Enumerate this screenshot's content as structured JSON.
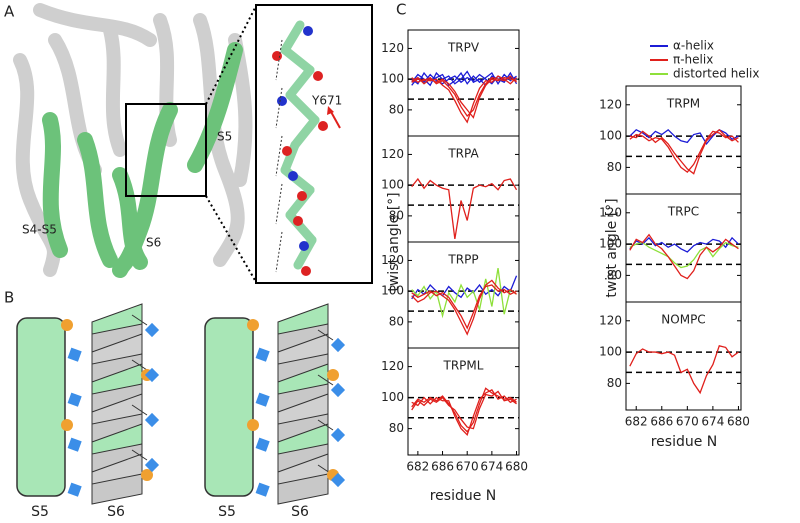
{
  "panels": {
    "a": {
      "letter": "A",
      "labels": [
        "S4-S5",
        "S6",
        "S5",
        "Y671"
      ]
    },
    "b": {
      "letter": "B",
      "labels": [
        "S5",
        "S6",
        "S5",
        "S6"
      ]
    },
    "c": {
      "letter": "C"
    }
  },
  "legend": [
    {
      "name": "α-helix",
      "color": "#1c1cd6"
    },
    {
      "name": "π-helix",
      "color": "#e0201c"
    },
    {
      "name": "distorted helix",
      "color": "#8ee03a"
    }
  ],
  "axis_columns": [
    {
      "ylabel": "twist angle [°]",
      "xlabel": "residue N"
    },
    {
      "ylabel": "twist angle [°]",
      "xlabel": "residue N"
    }
  ],
  "chart_data": [
    {
      "type": "line",
      "title": "TRPV",
      "x": [
        1,
        2,
        3,
        4,
        5,
        6,
        7,
        8,
        9,
        10,
        11,
        12,
        13,
        14,
        15,
        16,
        17,
        18
      ],
      "xlim": [
        0.4,
        18.4
      ],
      "ylim": [
        63,
        132
      ],
      "yticks": [
        80,
        100,
        120
      ],
      "reference_lines": [
        100,
        87
      ],
      "series": [
        {
          "color": "#1c1cd6",
          "values": [
            96,
            101,
            98,
            103,
            99,
            97,
            100,
            102,
            98,
            101,
            99,
            103,
            100,
            97,
            102,
            99,
            101,
            100
          ]
        },
        {
          "color": "#1c1cd6",
          "values": [
            100,
            97,
            104,
            99,
            101,
            103,
            96,
            99,
            104,
            97,
            102,
            98,
            101,
            104,
            97,
            103,
            99,
            102
          ]
        },
        {
          "color": "#1c1cd6",
          "values": [
            98,
            103,
            100,
            96,
            104,
            100,
            102,
            97,
            100,
            105,
            98,
            100,
            96,
            102,
            100,
            98,
            104,
            97
          ]
        },
        {
          "color": "#e0201c",
          "values": [
            98,
            100,
            99,
            101,
            97,
            99,
            95,
            90,
            82,
            76,
            80,
            90,
            97,
            101,
            100,
            99,
            102,
            98
          ]
        },
        {
          "color": "#e0201c",
          "values": [
            101,
            98,
            100,
            99,
            100,
            96,
            93,
            86,
            78,
            72,
            84,
            94,
            99,
            98,
            102,
            100,
            97,
            101
          ]
        },
        {
          "color": "#e0201c",
          "values": [
            99,
            101,
            97,
            100,
            98,
            100,
            97,
            92,
            85,
            80,
            75,
            88,
            96,
            100,
            99,
            101,
            100,
            99
          ]
        }
      ]
    },
    {
      "type": "line",
      "title": "TRPA",
      "x": [
        1,
        2,
        3,
        4,
        5,
        6,
        7,
        8,
        9,
        10,
        11,
        12,
        13,
        14,
        15,
        16,
        17,
        18
      ],
      "xlim": [
        0.4,
        18.4
      ],
      "ylim": [
        63,
        132
      ],
      "yticks": [
        80,
        100,
        120
      ],
      "reference_lines": [
        100,
        87
      ],
      "series": [
        {
          "color": "#e0201c",
          "values": [
            99,
            104,
            98,
            103,
            100,
            98,
            97,
            65,
            90,
            77,
            98,
            100,
            99,
            101,
            97,
            103,
            104,
            97
          ]
        }
      ]
    },
    {
      "type": "line",
      "title": "TRPP",
      "x": [
        1,
        2,
        3,
        4,
        5,
        6,
        7,
        8,
        9,
        10,
        11,
        12,
        13,
        14,
        15,
        16,
        17,
        18
      ],
      "xlim": [
        0.4,
        18.4
      ],
      "ylim": [
        63,
        132
      ],
      "yticks": [
        80,
        100,
        120
      ],
      "reference_lines": [
        100,
        87
      ],
      "series": [
        {
          "color": "#1c1cd6",
          "values": [
            95,
            101,
            98,
            104,
            100,
            97,
            103,
            99,
            96,
            102,
            99,
            104,
            98,
            101,
            97,
            103,
            100,
            110
          ]
        },
        {
          "color": "#8ee03a",
          "values": [
            101,
            97,
            103,
            95,
            100,
            84,
            99,
            93,
            104,
            96,
            100,
            88,
            108,
            90,
            115,
            85,
            101,
            98
          ]
        },
        {
          "color": "#e0201c",
          "values": [
            97,
            93,
            95,
            99,
            100,
            97,
            94,
            88,
            80,
            72,
            82,
            95,
            104,
            107,
            102,
            99,
            101,
            98
          ]
        },
        {
          "color": "#e0201c",
          "values": [
            99,
            96,
            98,
            100,
            97,
            99,
            96,
            90,
            84,
            76,
            86,
            97,
            103,
            104,
            100,
            101,
            98,
            100
          ]
        }
      ]
    },
    {
      "type": "line",
      "title": "TRPML",
      "x": [
        1,
        2,
        3,
        4,
        5,
        6,
        7,
        8,
        9,
        10,
        11,
        12,
        13,
        14,
        15,
        16,
        17,
        18
      ],
      "xlim": [
        0.4,
        18.4
      ],
      "ylim": [
        63,
        132
      ],
      "yticks": [
        80,
        100,
        120
      ],
      "reference_lines": [
        100,
        87
      ],
      "xticks": [
        {
          "value": 2,
          "label": "682"
        },
        {
          "value": 6,
          "label": "686"
        },
        {
          "value": 10,
          "label": "670"
        },
        {
          "value": 14,
          "label": "674"
        },
        {
          "value": 18,
          "label": "680"
        }
      ],
      "series": [
        {
          "color": "#e0201c",
          "values": [
            94,
            99,
            97,
            100,
            98,
            101,
            96,
            90,
            82,
            78,
            84,
            96,
            106,
            103,
            101,
            99,
            100,
            97
          ]
        },
        {
          "color": "#e0201c",
          "values": [
            97,
            95,
            100,
            96,
            100,
            98,
            98,
            88,
            80,
            76,
            88,
            99,
            103,
            105,
            99,
            101,
            97,
            99
          ]
        },
        {
          "color": "#e0201c",
          "values": [
            92,
            98,
            95,
            99,
            97,
            100,
            95,
            92,
            86,
            81,
            80,
            93,
            102,
            101,
            104,
            98,
            99,
            96
          ]
        }
      ]
    },
    {
      "type": "line",
      "title": "TRPM",
      "x": [
        1,
        2,
        3,
        4,
        5,
        6,
        7,
        8,
        9,
        10,
        11,
        12,
        13,
        14,
        15,
        16,
        17,
        18
      ],
      "xlim": [
        0.4,
        18.4
      ],
      "ylim": [
        63,
        132
      ],
      "yticks": [
        80,
        100,
        120
      ],
      "reference_lines": [
        100,
        87
      ],
      "series": [
        {
          "color": "#1c1cd6",
          "values": [
            100,
            104,
            102,
            99,
            103,
            101,
            104,
            100,
            97,
            96,
            101,
            102,
            95,
            100,
            104,
            102,
            98,
            100
          ]
        },
        {
          "color": "#e0201c",
          "values": [
            98,
            101,
            100,
            97,
            99,
            98,
            93,
            86,
            80,
            77,
            82,
            90,
            98,
            103,
            102,
            99,
            100,
            96
          ]
        },
        {
          "color": "#e0201c",
          "values": [
            100,
            99,
            103,
            100,
            96,
            99,
            95,
            89,
            84,
            79,
            76,
            88,
            97,
            101,
            104,
            100,
            97,
            99
          ]
        }
      ]
    },
    {
      "type": "line",
      "title": "TRPC",
      "x": [
        1,
        2,
        3,
        4,
        5,
        6,
        7,
        8,
        9,
        10,
        11,
        12,
        13,
        14,
        15,
        16,
        17,
        18
      ],
      "xlim": [
        0.4,
        18.4
      ],
      "ylim": [
        63,
        132
      ],
      "yticks": [
        80,
        100,
        120
      ],
      "reference_lines": [
        100,
        87
      ],
      "series": [
        {
          "color": "#1c1cd6",
          "values": [
            97,
            102,
            100,
            104,
            99,
            101,
            98,
            100,
            97,
            95,
            99,
            101,
            100,
            103,
            102,
            98,
            104,
            100
          ]
        },
        {
          "color": "#8ee03a",
          "values": [
            98,
            100,
            101,
            98,
            96,
            94,
            92,
            88,
            85,
            86,
            90,
            96,
            98,
            92,
            97,
            101,
            99,
            98
          ]
        },
        {
          "color": "#e0201c",
          "values": [
            96,
            103,
            101,
            106,
            100,
            97,
            92,
            86,
            80,
            78,
            83,
            93,
            98,
            95,
            98,
            103,
            100,
            97
          ]
        }
      ]
    },
    {
      "type": "line",
      "title": "NOMPC",
      "x": [
        1,
        2,
        3,
        4,
        5,
        6,
        7,
        8,
        9,
        10,
        11,
        12,
        13,
        14,
        15,
        16,
        17,
        18
      ],
      "xlim": [
        0.4,
        18.4
      ],
      "ylim": [
        63,
        132
      ],
      "yticks": [
        80,
        100,
        120
      ],
      "reference_lines": [
        100,
        87
      ],
      "xticks": [
        {
          "value": 2,
          "label": "682"
        },
        {
          "value": 6,
          "label": "686"
        },
        {
          "value": 10,
          "label": "670"
        },
        {
          "value": 14,
          "label": "674"
        },
        {
          "value": 18,
          "label": "680"
        }
      ],
      "series": [
        {
          "color": "#e0201c",
          "values": [
            91,
            99,
            102,
            100,
            100,
            99,
            100,
            98,
            87,
            89,
            80,
            74,
            85,
            92,
            104,
            103,
            97,
            100
          ]
        }
      ]
    }
  ]
}
